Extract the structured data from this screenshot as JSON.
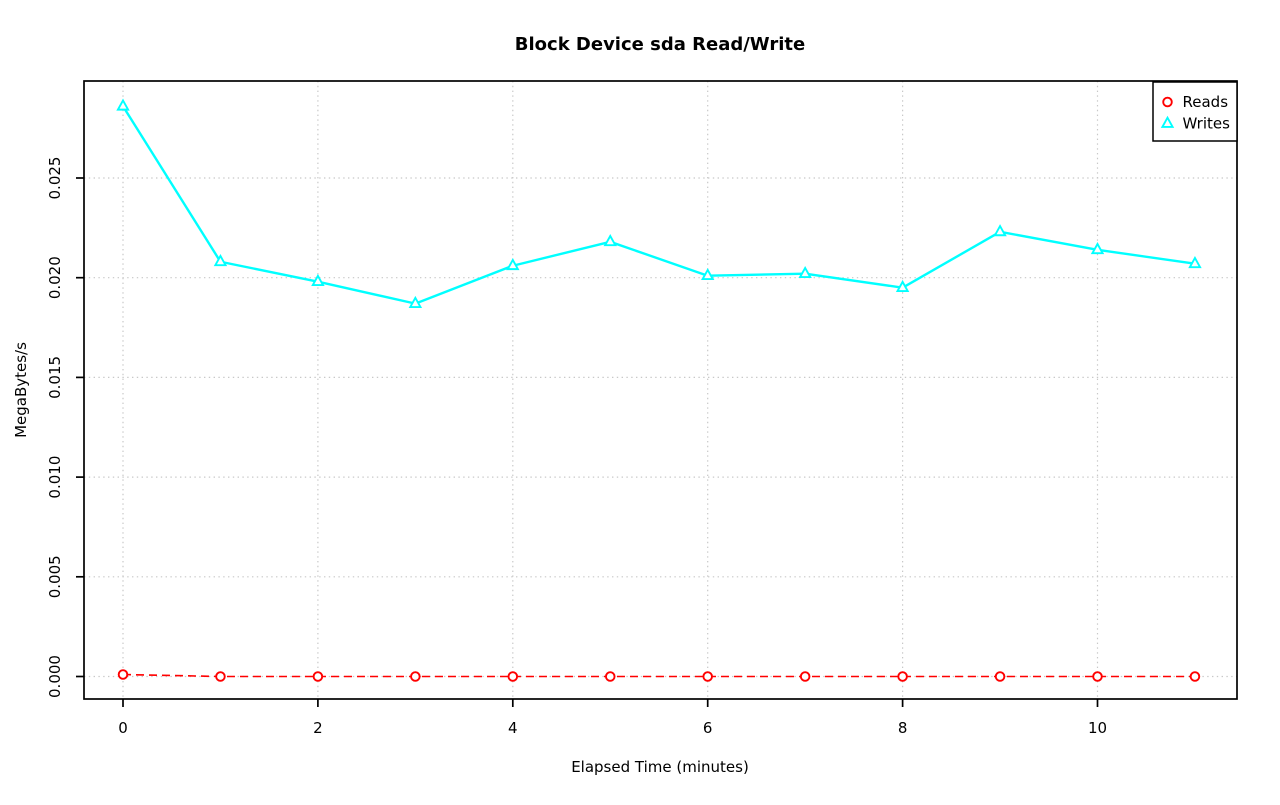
{
  "page": {
    "background": "#FFFFFF"
  },
  "chart_data": {
    "type": "line",
    "title": "Block Device sda Read/Write",
    "xlabel": "Elapsed Time (minutes)",
    "ylabel": "MegaBytes/s",
    "x": [
      0,
      1,
      2,
      3,
      4,
      5,
      6,
      7,
      8,
      9,
      10,
      11
    ],
    "series": [
      {
        "name": "Reads",
        "color": "#FF0000",
        "marker": "circle",
        "line_style": "dashed",
        "values": [
          0.0001,
          0.0,
          0.0,
          0.0,
          0.0,
          0.0,
          0.0,
          0.0,
          0.0,
          0.0,
          0.0,
          0.0
        ]
      },
      {
        "name": "Writes",
        "color": "#00FFFF",
        "marker": "triangle",
        "line_style": "solid",
        "values": [
          0.0286,
          0.0208,
          0.0198,
          0.0187,
          0.0206,
          0.0218,
          0.0201,
          0.0202,
          0.0195,
          0.0223,
          0.0214,
          0.0207
        ]
      }
    ],
    "x_ticks": [
      0,
      2,
      4,
      6,
      8,
      10
    ],
    "x_tick_labels": [
      "0",
      "2",
      "4",
      "6",
      "8",
      "10"
    ],
    "y_ticks": [
      0.0,
      0.005,
      0.01,
      0.015,
      0.02,
      0.025
    ],
    "y_tick_labels": [
      "0.000",
      "0.005",
      "0.010",
      "0.015",
      "0.020",
      "0.025"
    ],
    "xlim": [
      -0.4,
      11.43
    ],
    "ylim": [
      -0.0011,
      0.0299
    ],
    "grid": true,
    "grid_style": "dotted",
    "grid_color": "#C8C8C8",
    "axis_color": "#000000",
    "legend": {
      "position": "top-right",
      "border_color": "#000000",
      "entries": [
        {
          "label": "Reads",
          "color": "#FF0000",
          "marker": "circle"
        },
        {
          "label": "Writes",
          "color": "#00FFFF",
          "marker": "triangle"
        }
      ]
    }
  }
}
